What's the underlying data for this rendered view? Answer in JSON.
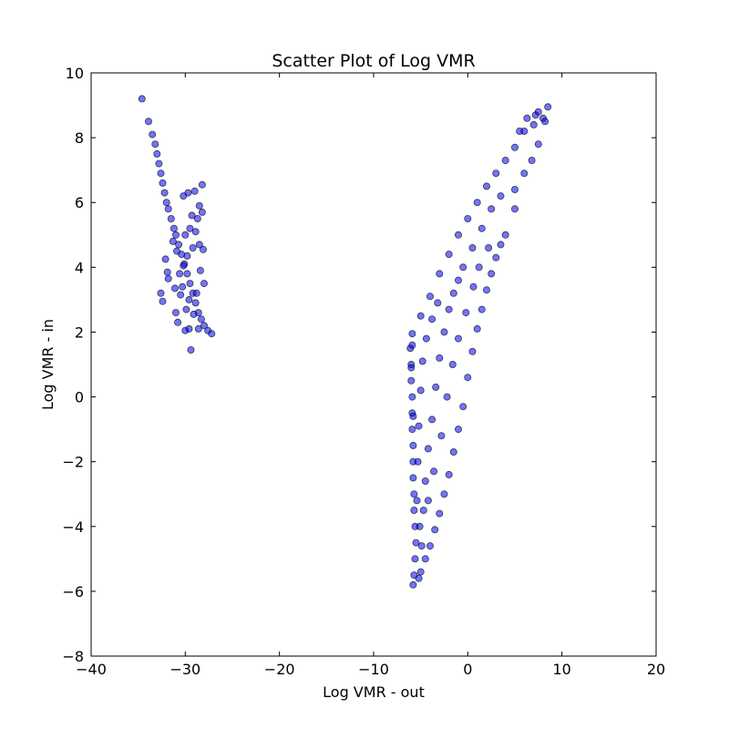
{
  "chart_data": {
    "type": "scatter",
    "title": "Scatter Plot of Log VMR",
    "xlabel": "Log VMR - out",
    "ylabel": "Log VMR - in",
    "xlim": [
      -40,
      20
    ],
    "ylim": [
      -8,
      10
    ],
    "x_ticks": [
      -40,
      -30,
      -20,
      -10,
      0,
      10,
      20
    ],
    "y_ticks": [
      -8,
      -6,
      -4,
      -2,
      0,
      2,
      4,
      6,
      8,
      10
    ],
    "x_tick_labels": [
      "−40",
      "−30",
      "−20",
      "−10",
      "0",
      "10",
      "20"
    ],
    "y_tick_labels": [
      "−8",
      "−6",
      "−4",
      "−2",
      "0",
      "2",
      "4",
      "6",
      "8",
      "10"
    ],
    "grid": false,
    "marker_color": "#0000ff",
    "marker_edge_color": "#000000",
    "marker_alpha": 0.55,
    "series": [
      {
        "points": [
          [
            -34.6,
            9.2
          ],
          [
            -33.9,
            8.5
          ],
          [
            -33.5,
            8.1
          ],
          [
            -33.2,
            7.8
          ],
          [
            -33.0,
            7.5
          ],
          [
            -32.8,
            7.2
          ],
          [
            -32.6,
            6.9
          ],
          [
            -32.4,
            6.6
          ],
          [
            -32.2,
            6.3
          ],
          [
            -32.0,
            6.0
          ],
          [
            -31.8,
            5.8
          ],
          [
            -31.5,
            5.5
          ],
          [
            -31.2,
            5.2
          ],
          [
            -31.0,
            5.0
          ],
          [
            -30.7,
            4.7
          ],
          [
            -30.4,
            4.4
          ],
          [
            -30.1,
            4.1
          ],
          [
            -29.8,
            3.8
          ],
          [
            -29.5,
            3.5
          ],
          [
            -29.2,
            3.2
          ],
          [
            -28.9,
            2.9
          ],
          [
            -28.6,
            2.6
          ],
          [
            -28.3,
            2.4
          ],
          [
            -28.0,
            2.2
          ],
          [
            -27.6,
            2.05
          ],
          [
            -27.2,
            1.95
          ],
          [
            -32.1,
            4.25
          ],
          [
            -31.9,
            3.85
          ],
          [
            -31.8,
            3.65
          ],
          [
            -31.1,
            3.35
          ],
          [
            -30.5,
            3.15
          ],
          [
            -30.2,
            4.05
          ],
          [
            -29.8,
            4.35
          ],
          [
            -29.5,
            5.2
          ],
          [
            -29.3,
            5.6
          ],
          [
            -29.0,
            6.35
          ],
          [
            -29.7,
            6.3
          ],
          [
            -30.2,
            6.2
          ],
          [
            -28.5,
            5.9
          ],
          [
            -28.2,
            6.55
          ],
          [
            -28.2,
            5.7
          ],
          [
            -28.5,
            4.7
          ],
          [
            -28.1,
            4.55
          ],
          [
            -28.8,
            3.2
          ],
          [
            -29.1,
            2.55
          ],
          [
            -29.6,
            2.1
          ],
          [
            -29.4,
            1.45
          ],
          [
            -30.0,
            2.05
          ],
          [
            -32.4,
            2.95
          ],
          [
            -32.6,
            3.2
          ],
          [
            -31.0,
            2.6
          ],
          [
            -30.8,
            2.3
          ],
          [
            -30.3,
            3.4
          ],
          [
            -29.9,
            2.7
          ],
          [
            -30.6,
            3.8
          ],
          [
            -28.4,
            3.9
          ],
          [
            -28.0,
            3.5
          ],
          [
            -28.6,
            2.1
          ],
          [
            -28.9,
            5.1
          ],
          [
            -29.2,
            4.6
          ],
          [
            -28.7,
            5.5
          ],
          [
            -30.0,
            5.0
          ],
          [
            -30.9,
            4.5
          ],
          [
            -31.3,
            4.8
          ],
          [
            -29.6,
            3.0
          ]
        ]
      },
      {
        "points": [
          [
            -5.8,
            -5.8
          ],
          [
            -5.7,
            -5.5
          ],
          [
            -5.6,
            -5.0
          ],
          [
            -5.5,
            -4.5
          ],
          [
            -5.6,
            -4.0
          ],
          [
            -5.7,
            -3.5
          ],
          [
            -5.7,
            -3.0
          ],
          [
            -5.8,
            -2.5
          ],
          [
            -5.8,
            -2.0
          ],
          [
            -5.8,
            -1.5
          ],
          [
            -5.9,
            -1.0
          ],
          [
            -5.9,
            -0.5
          ],
          [
            -5.9,
            0.0
          ],
          [
            -6.0,
            0.5
          ],
          [
            -6.0,
            1.0
          ],
          [
            -6.1,
            1.5
          ],
          [
            -5.9,
            1.95
          ],
          [
            -5.0,
            2.5
          ],
          [
            -4.0,
            3.1
          ],
          [
            -3.0,
            3.8
          ],
          [
            -2.0,
            4.4
          ],
          [
            -1.0,
            5.0
          ],
          [
            0.0,
            5.5
          ],
          [
            1.0,
            6.0
          ],
          [
            2.0,
            6.5
          ],
          [
            3.0,
            6.9
          ],
          [
            4.0,
            7.3
          ],
          [
            5.0,
            7.7
          ],
          [
            5.5,
            8.2
          ],
          [
            6.0,
            8.2
          ],
          [
            6.3,
            8.6
          ],
          [
            7.2,
            8.7
          ],
          [
            7.5,
            8.8
          ],
          [
            8.0,
            8.6
          ],
          [
            8.2,
            8.5
          ],
          [
            8.5,
            8.95
          ],
          [
            7.0,
            8.4
          ],
          [
            7.5,
            7.8
          ],
          [
            6.8,
            7.3
          ],
          [
            6.0,
            6.9
          ],
          [
            5.0,
            6.4
          ],
          [
            5.0,
            5.8
          ],
          [
            4.0,
            5.0
          ],
          [
            3.5,
            4.7
          ],
          [
            3.0,
            4.3
          ],
          [
            2.5,
            3.8
          ],
          [
            2.0,
            3.3
          ],
          [
            1.5,
            2.7
          ],
          [
            1.0,
            2.1
          ],
          [
            0.5,
            1.4
          ],
          [
            0.0,
            0.6
          ],
          [
            -0.5,
            -0.3
          ],
          [
            -1.0,
            -1.0
          ],
          [
            -1.5,
            -1.7
          ],
          [
            -2.0,
            -2.4
          ],
          [
            -2.5,
            -3.0
          ],
          [
            -3.0,
            -3.6
          ],
          [
            -3.5,
            -4.1
          ],
          [
            -4.0,
            -4.6
          ],
          [
            -4.5,
            -5.0
          ],
          [
            -5.0,
            -5.4
          ],
          [
            -5.2,
            -5.6
          ],
          [
            -4.9,
            -4.6
          ],
          [
            -4.7,
            -3.5
          ],
          [
            -4.5,
            -2.6
          ],
          [
            -4.2,
            -1.6
          ],
          [
            -3.8,
            -0.7
          ],
          [
            -3.4,
            0.3
          ],
          [
            -3.0,
            1.2
          ],
          [
            -2.5,
            2.0
          ],
          [
            -2.0,
            2.7
          ],
          [
            -1.5,
            3.2
          ],
          [
            -1.0,
            3.6
          ],
          [
            -0.5,
            4.0
          ],
          [
            0.5,
            4.6
          ],
          [
            1.5,
            5.2
          ],
          [
            2.5,
            5.8
          ],
          [
            3.5,
            6.2
          ],
          [
            -5.3,
            -2.0
          ],
          [
            -5.2,
            -0.9
          ],
          [
            -5.0,
            0.2
          ],
          [
            -4.8,
            1.1
          ],
          [
            -4.4,
            1.8
          ],
          [
            -3.8,
            2.4
          ],
          [
            -3.2,
            2.9
          ],
          [
            -5.4,
            -3.2
          ],
          [
            -5.1,
            -4.0
          ],
          [
            -4.2,
            -3.2
          ],
          [
            -3.6,
            -2.3
          ],
          [
            -2.8,
            -1.2
          ],
          [
            -2.2,
            0.0
          ],
          [
            -1.6,
            1.0
          ],
          [
            -1.0,
            1.8
          ],
          [
            -0.2,
            2.6
          ],
          [
            0.6,
            3.4
          ],
          [
            1.2,
            4.0
          ],
          [
            2.2,
            4.6
          ],
          [
            -6.0,
            0.9
          ],
          [
            -5.9,
            1.6
          ],
          [
            -5.8,
            -0.6
          ]
        ]
      }
    ]
  }
}
